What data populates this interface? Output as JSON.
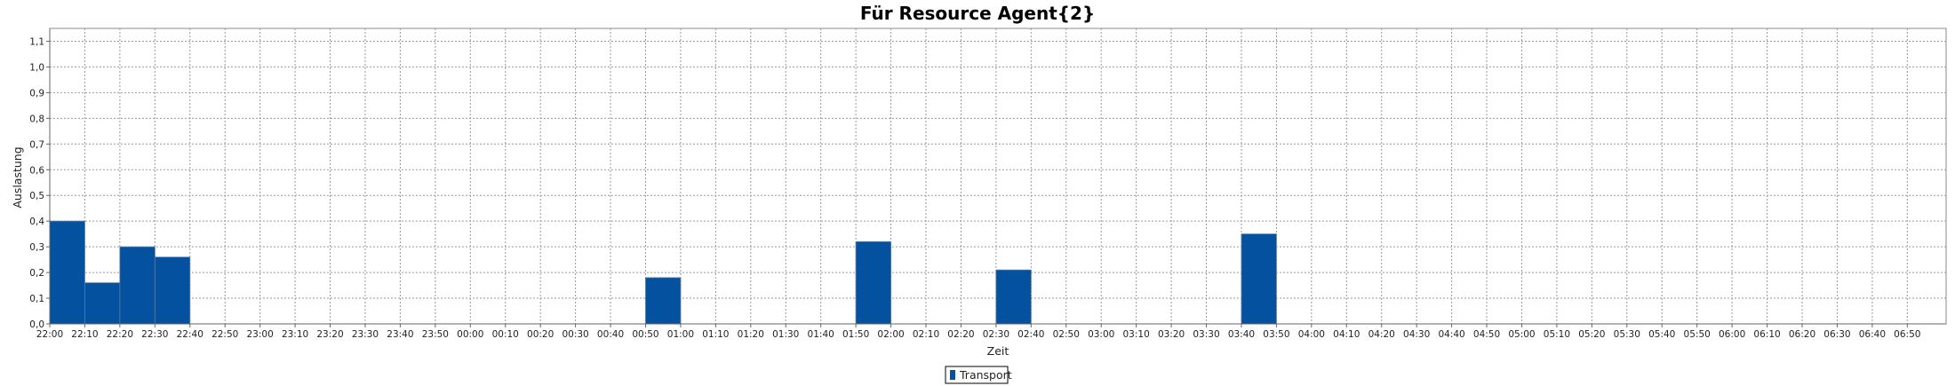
{
  "chart_data": {
    "type": "bar",
    "title": "Für Resource Agent{2}",
    "xlabel": "Zeit",
    "ylabel": "Auslastung",
    "ylim": [
      0,
      1.15
    ],
    "y_ticks": [
      "0,0",
      "0,1",
      "0,2",
      "0,3",
      "0,4",
      "0,5",
      "0,6",
      "0,7",
      "0,8",
      "0,9",
      "1,0",
      "1,1"
    ],
    "categories": [
      "22:00",
      "22:10",
      "22:20",
      "22:30",
      "22:40",
      "22:50",
      "23:00",
      "23:10",
      "23:20",
      "23:30",
      "23:40",
      "23:50",
      "00:00",
      "00:10",
      "00:20",
      "00:30",
      "00:40",
      "00:50",
      "01:00",
      "01:10",
      "01:20",
      "01:30",
      "01:40",
      "01:50",
      "02:00",
      "02:10",
      "02:20",
      "02:30",
      "02:40",
      "02:50",
      "03:00",
      "03:10",
      "03:20",
      "03:30",
      "03:40",
      "03:50",
      "04:00",
      "04:10",
      "04:20",
      "04:30",
      "04:40",
      "04:50",
      "05:00",
      "05:10",
      "05:20",
      "05:30",
      "05:40",
      "05:50",
      "06:00",
      "06:10",
      "06:20",
      "06:30",
      "06:40",
      "06:50"
    ],
    "series": [
      {
        "name": "Transport",
        "color": "#03519f",
        "bars": [
          {
            "start": "22:00",
            "end": "22:10",
            "value": 0.4
          },
          {
            "start": "22:10",
            "end": "22:20",
            "value": 0.16
          },
          {
            "start": "22:20",
            "end": "22:30",
            "value": 0.3
          },
          {
            "start": "22:30",
            "end": "22:40",
            "value": 0.26
          },
          {
            "start": "00:50",
            "end": "01:00",
            "value": 0.18
          },
          {
            "start": "01:50",
            "end": "02:00",
            "value": 0.32
          },
          {
            "start": "02:30",
            "end": "02:40",
            "value": 0.21
          },
          {
            "start": "03:40",
            "end": "03:50",
            "value": 0.35
          }
        ]
      }
    ],
    "grid": true,
    "legend": "bottom-center"
  }
}
